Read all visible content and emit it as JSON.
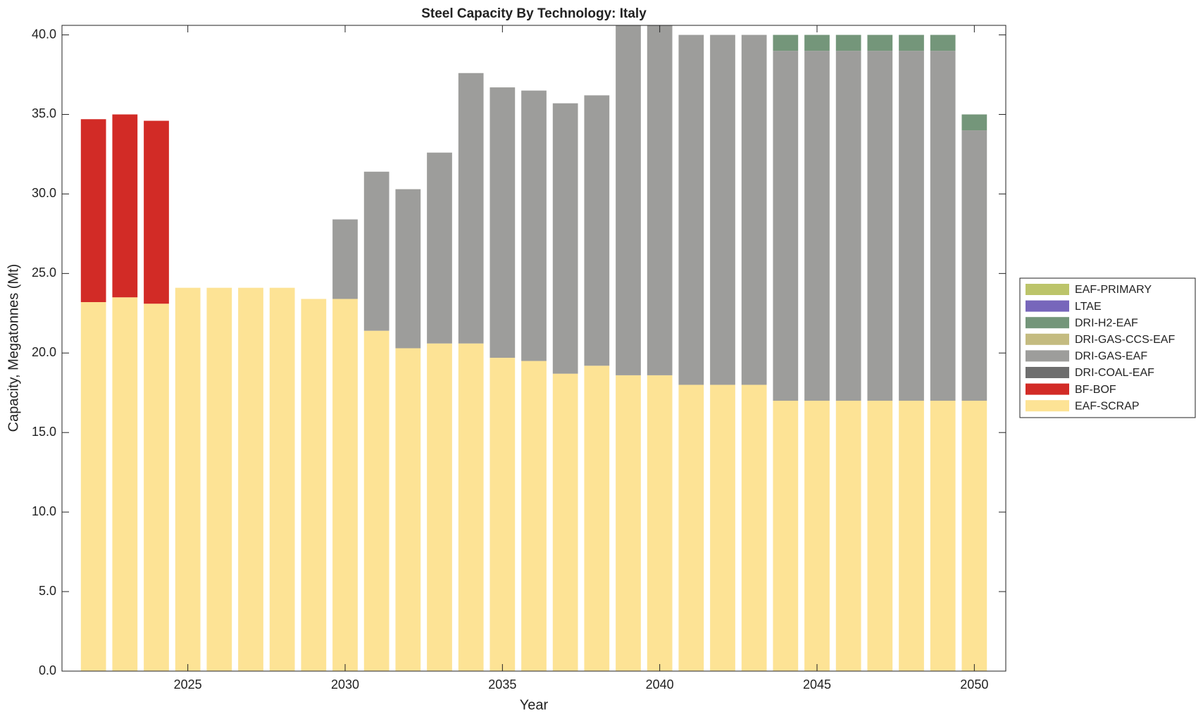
{
  "chart_data": {
    "type": "stacked-bar",
    "title": "Steel Capacity By Technology: Italy",
    "x_label": "Year",
    "y_label": "Capacity, Megatonnes (Mt)",
    "x": [
      2022,
      2023,
      2024,
      2025,
      2026,
      2027,
      2028,
      2029,
      2030,
      2031,
      2032,
      2033,
      2034,
      2035,
      2036,
      2037,
      2038,
      2039,
      2040,
      2041,
      2042,
      2043,
      2044,
      2045,
      2046,
      2047,
      2048,
      2049,
      2050
    ],
    "xlim": [
      2021,
      2051
    ],
    "xticks": [
      2025,
      2030,
      2035,
      2040,
      2045,
      2050
    ],
    "ylim": [
      0,
      40.6
    ],
    "yticks": [
      {
        "value": 0,
        "label": "0.0"
      },
      {
        "value": 5,
        "label": "5.0"
      },
      {
        "value": 10,
        "label": "10.0"
      },
      {
        "value": 15,
        "label": "15.0"
      },
      {
        "value": 20,
        "label": "20.0"
      },
      {
        "value": 25,
        "label": "25.0"
      },
      {
        "value": 30,
        "label": "30.0"
      },
      {
        "value": 35,
        "label": "35.0"
      },
      {
        "value": 40,
        "label": "40.0"
      }
    ],
    "legend_position": "right",
    "series": [
      {
        "name": "EAF-SCRAP",
        "color": "#fde395",
        "values": [
          23.2,
          23.5,
          23.1,
          24.1,
          24.1,
          24.1,
          24.1,
          23.4,
          23.4,
          21.4,
          20.3,
          20.6,
          20.6,
          19.7,
          19.5,
          18.7,
          19.2,
          18.6,
          18.6,
          18.0,
          18.0,
          18.0,
          17.0,
          17.0,
          17.0,
          17.0,
          17.0,
          17.0,
          17.0
        ]
      },
      {
        "name": "BF-BOF",
        "color": "#d22b26",
        "values": [
          11.5,
          11.5,
          11.5,
          0,
          0,
          0,
          0,
          0,
          0,
          0,
          0,
          0,
          0,
          0,
          0,
          0,
          0,
          0,
          0,
          0,
          0,
          0,
          0,
          0,
          0,
          0,
          0,
          0,
          0
        ]
      },
      {
        "name": "DRI-COAL-EAF",
        "color": "#6e6e6e",
        "values": [
          0,
          0,
          0,
          0,
          0,
          0,
          0,
          0,
          0,
          0,
          0,
          0,
          0,
          0,
          0,
          0,
          0,
          0,
          0,
          0,
          0,
          0,
          0,
          0,
          0,
          0,
          0,
          0,
          0
        ]
      },
      {
        "name": "DRI-GAS-EAF",
        "color": "#9d9d9b",
        "values": [
          0,
          0,
          0,
          0,
          0,
          0,
          0,
          0,
          5.0,
          10.0,
          10.0,
          12.0,
          17.0,
          17.0,
          17.0,
          17.0,
          17.0,
          22.4,
          22.4,
          22.0,
          22.0,
          22.0,
          22.0,
          22.0,
          22.0,
          22.0,
          22.0,
          22.0,
          17.0
        ]
      },
      {
        "name": "DRI-GAS-CCS-EAF",
        "color": "#c4bb80",
        "values": [
          0,
          0,
          0,
          0,
          0,
          0,
          0,
          0,
          0,
          0,
          0,
          0,
          0,
          0,
          0,
          0,
          0,
          0,
          0,
          0,
          0,
          0,
          0,
          0,
          0,
          0,
          0,
          0,
          0
        ]
      },
      {
        "name": "DRI-H2-EAF",
        "color": "#74967a",
        "values": [
          0,
          0,
          0,
          0,
          0,
          0,
          0,
          0,
          0,
          0,
          0,
          0,
          0,
          0,
          0,
          0,
          0,
          0,
          0,
          0,
          0,
          0,
          1.0,
          1.0,
          1.0,
          1.0,
          1.0,
          1.0,
          1.0
        ]
      },
      {
        "name": "LTAE",
        "color": "#7766bb",
        "values": [
          0,
          0,
          0,
          0,
          0,
          0,
          0,
          0,
          0,
          0,
          0,
          0,
          0,
          0,
          0,
          0,
          0,
          0,
          0,
          0,
          0,
          0,
          0,
          0,
          0,
          0,
          0,
          0,
          0
        ]
      },
      {
        "name": "EAF-PRIMARY",
        "color": "#bcc46a",
        "values": [
          0,
          0,
          0,
          0,
          0,
          0,
          0,
          0,
          0,
          0,
          0,
          0,
          0,
          0,
          0,
          0,
          0,
          0,
          0,
          0,
          0,
          0,
          0,
          0,
          0,
          0,
          0,
          0,
          0
        ]
      }
    ]
  }
}
